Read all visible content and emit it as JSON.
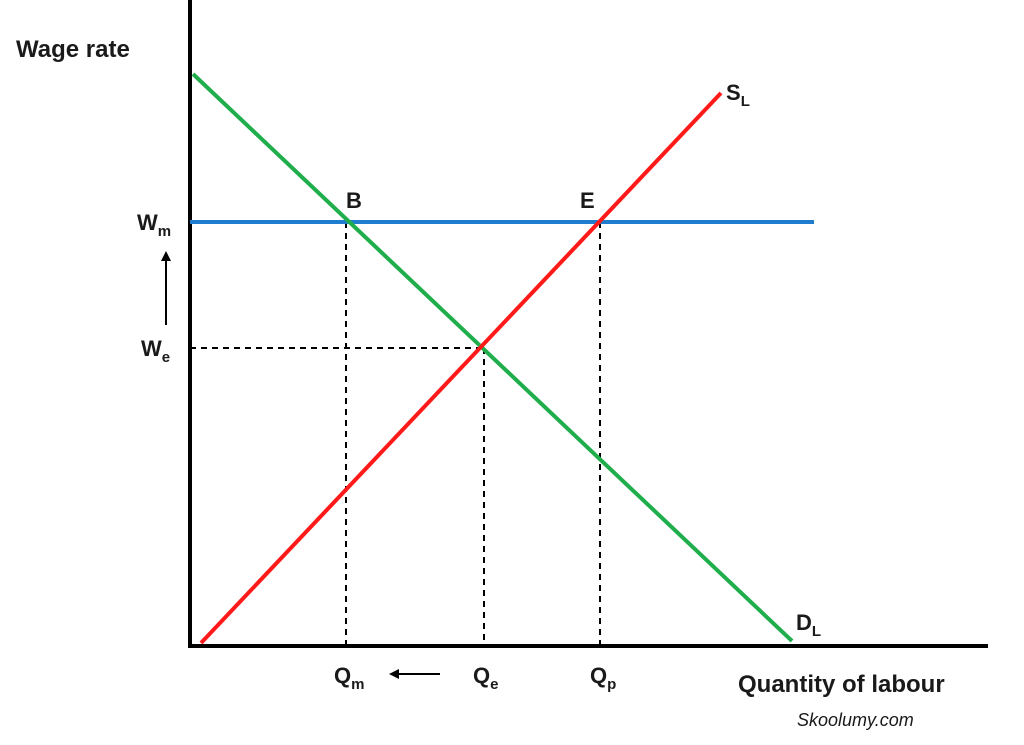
{
  "axes": {
    "y_label": "Wage rate",
    "x_label": "Quantity of labour"
  },
  "curves": {
    "supply": {
      "main": "S",
      "sub": "L",
      "color": "#ff1a1a"
    },
    "demand": {
      "main": "D",
      "sub": "L",
      "color": "#1fae4b"
    },
    "minimum_wage_color": "#1f7ccf"
  },
  "points": {
    "B": "B",
    "E": "E"
  },
  "y_ticks": {
    "wm": {
      "main": "W",
      "sub": "m"
    },
    "we": {
      "main": "W",
      "sub": "e"
    }
  },
  "x_ticks": {
    "qm": {
      "main": "Q",
      "sub": "m"
    },
    "qe": {
      "main": "Q",
      "sub": "e"
    },
    "qp": {
      "main": "Q",
      "sub": "p"
    }
  },
  "watermark": "Skoolumy.com"
}
